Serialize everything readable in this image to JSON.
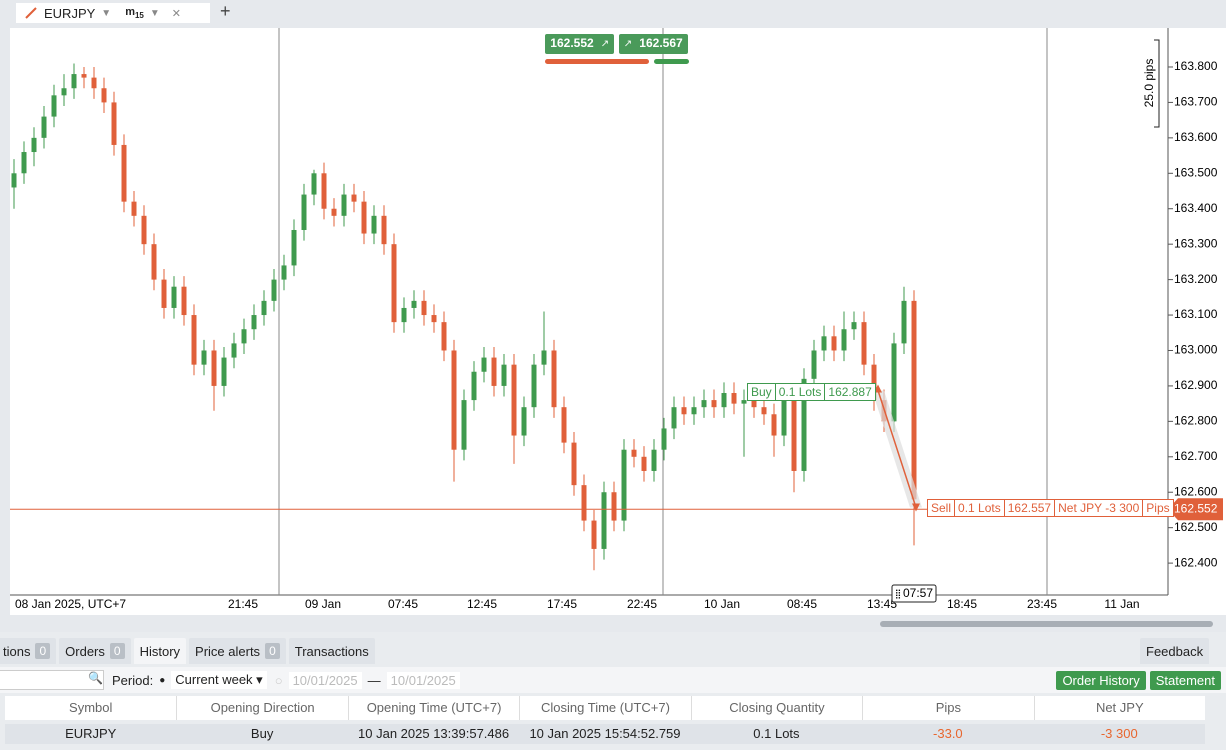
{
  "toolbar": {
    "symbol": "EURJPY",
    "timeframe": "m",
    "timeframe_sub": "15"
  },
  "quote": {
    "bid": 162.552,
    "ask": 162.567
  },
  "ruler": "25.0 pips",
  "crosshair_time": "07:57",
  "chart_data": {
    "type": "candlestick",
    "ylim": [
      162.31,
      163.91
    ],
    "yticks": [
      {
        "value": 163.8,
        "label": "163.800"
      },
      {
        "value": 163.7,
        "label": "163.700"
      },
      {
        "value": 163.6,
        "label": "163.600"
      },
      {
        "value": 163.5,
        "label": "163.500"
      },
      {
        "value": 163.4,
        "label": "163.400"
      },
      {
        "value": 163.3,
        "label": "163.300"
      },
      {
        "value": 163.2,
        "label": "163.200"
      },
      {
        "value": 163.1,
        "label": "163.100"
      },
      {
        "value": 163.0,
        "label": "163.000"
      },
      {
        "value": 162.9,
        "label": "162.900"
      },
      {
        "value": 162.8,
        "label": "162.800"
      },
      {
        "value": 162.7,
        "label": "162.700"
      },
      {
        "value": 162.6,
        "label": "162.600"
      },
      {
        "value": 162.5,
        "label": "162.500"
      },
      {
        "value": 162.4,
        "label": "162.400"
      }
    ],
    "xtick_labels": [
      "08 Jan 2025, UTC+7",
      "21:45",
      "09 Jan",
      "07:45",
      "12:45",
      "17:45",
      "22:45",
      "10 Jan",
      "08:45",
      "13:45",
      "18:45",
      "23:45",
      "11 Jan"
    ],
    "up_color": "#3f9a4e",
    "down_color": "#e0603a",
    "current_price": 162.552,
    "trades": {
      "buy": {
        "side": "Buy",
        "lots": "0.1 Lots",
        "price": 162.887
      },
      "sell": {
        "side": "Sell",
        "lots": "0.1 Lots",
        "price": 162.557,
        "net": "Net JPY -3 300",
        "unit": "Pips"
      }
    },
    "candles": [
      [
        163.46,
        163.54,
        163.4,
        163.5
      ],
      [
        163.5,
        163.59,
        163.47,
        163.56
      ],
      [
        163.56,
        163.63,
        163.52,
        163.6
      ],
      [
        163.6,
        163.69,
        163.57,
        163.66
      ],
      [
        163.66,
        163.75,
        163.63,
        163.72
      ],
      [
        163.72,
        163.78,
        163.69,
        163.74
      ],
      [
        163.74,
        163.81,
        163.71,
        163.78
      ],
      [
        163.78,
        163.8,
        163.74,
        163.77
      ],
      [
        163.77,
        163.8,
        163.71,
        163.74
      ],
      [
        163.74,
        163.77,
        163.67,
        163.7
      ],
      [
        163.7,
        163.73,
        163.55,
        163.58
      ],
      [
        163.58,
        163.61,
        163.39,
        163.42
      ],
      [
        163.42,
        163.45,
        163.35,
        163.38
      ],
      [
        163.38,
        163.41,
        163.27,
        163.3
      ],
      [
        163.3,
        163.33,
        163.17,
        163.2
      ],
      [
        163.2,
        163.23,
        163.09,
        163.12
      ],
      [
        163.12,
        163.21,
        163.09,
        163.18
      ],
      [
        163.18,
        163.21,
        163.07,
        163.1
      ],
      [
        163.1,
        163.13,
        162.93,
        162.96
      ],
      [
        162.96,
        163.03,
        162.93,
        163.0
      ],
      [
        163.0,
        163.03,
        162.83,
        162.9
      ],
      [
        162.9,
        163.01,
        162.87,
        162.98
      ],
      [
        162.98,
        163.05,
        162.95,
        163.02
      ],
      [
        163.02,
        163.09,
        162.99,
        163.06
      ],
      [
        163.06,
        163.13,
        163.03,
        163.1
      ],
      [
        163.1,
        163.17,
        163.07,
        163.14
      ],
      [
        163.14,
        163.23,
        163.11,
        163.2
      ],
      [
        163.2,
        163.27,
        163.17,
        163.24
      ],
      [
        163.24,
        163.37,
        163.21,
        163.34
      ],
      [
        163.34,
        163.47,
        163.31,
        163.44
      ],
      [
        163.44,
        163.51,
        163.41,
        163.5
      ],
      [
        163.5,
        163.53,
        163.37,
        163.4
      ],
      [
        163.4,
        163.43,
        163.35,
        163.38
      ],
      [
        163.38,
        163.47,
        163.35,
        163.44
      ],
      [
        163.44,
        163.47,
        163.39,
        163.42
      ],
      [
        163.42,
        163.45,
        163.3,
        163.33
      ],
      [
        163.33,
        163.41,
        163.3,
        163.38
      ],
      [
        163.38,
        163.41,
        163.27,
        163.3
      ],
      [
        163.3,
        163.33,
        163.05,
        163.08
      ],
      [
        163.08,
        163.15,
        163.05,
        163.12
      ],
      [
        163.12,
        163.17,
        163.09,
        163.14
      ],
      [
        163.14,
        163.17,
        163.07,
        163.1
      ],
      [
        163.1,
        163.13,
        163.05,
        163.08
      ],
      [
        163.08,
        163.11,
        162.97,
        163.0
      ],
      [
        163.0,
        163.03,
        162.63,
        162.72
      ],
      [
        162.72,
        162.89,
        162.69,
        162.86
      ],
      [
        162.86,
        162.97,
        162.83,
        162.94
      ],
      [
        162.94,
        163.01,
        162.91,
        162.98
      ],
      [
        162.98,
        163.01,
        162.87,
        162.9
      ],
      [
        162.9,
        162.99,
        162.87,
        162.96
      ],
      [
        162.96,
        162.99,
        162.68,
        162.76
      ],
      [
        162.76,
        162.87,
        162.73,
        162.84
      ],
      [
        162.84,
        162.99,
        162.81,
        162.96
      ],
      [
        162.96,
        163.11,
        162.93,
        163.0
      ],
      [
        163.0,
        163.03,
        162.81,
        162.84
      ],
      [
        162.84,
        162.87,
        162.71,
        162.74
      ],
      [
        162.74,
        162.77,
        162.59,
        162.62
      ],
      [
        162.62,
        162.65,
        162.49,
        162.52
      ],
      [
        162.52,
        162.55,
        162.38,
        162.44
      ],
      [
        162.44,
        162.63,
        162.41,
        162.6
      ],
      [
        162.6,
        162.63,
        162.49,
        162.52
      ],
      [
        162.52,
        162.75,
        162.49,
        162.72
      ],
      [
        162.72,
        162.75,
        162.67,
        162.7
      ],
      [
        162.7,
        162.73,
        162.63,
        162.66
      ],
      [
        162.66,
        162.75,
        162.63,
        162.72
      ],
      [
        162.72,
        162.81,
        162.69,
        162.78
      ],
      [
        162.78,
        162.87,
        162.75,
        162.84
      ],
      [
        162.84,
        162.87,
        162.79,
        162.82
      ],
      [
        162.82,
        162.87,
        162.79,
        162.84
      ],
      [
        162.84,
        162.89,
        162.81,
        162.86
      ],
      [
        162.86,
        162.89,
        162.81,
        162.84
      ],
      [
        162.84,
        162.91,
        162.81,
        162.88
      ],
      [
        162.88,
        162.91,
        162.82,
        162.85
      ],
      [
        162.85,
        162.89,
        162.7,
        162.86
      ],
      [
        162.86,
        162.89,
        162.81,
        162.84
      ],
      [
        162.84,
        162.87,
        162.79,
        162.82
      ],
      [
        162.82,
        162.85,
        162.7,
        162.76
      ],
      [
        162.76,
        162.89,
        162.73,
        162.86
      ],
      [
        162.86,
        162.89,
        162.6,
        162.66
      ],
      [
        162.66,
        162.95,
        162.63,
        162.92
      ],
      [
        162.92,
        163.03,
        162.89,
        163.0
      ],
      [
        163.0,
        163.07,
        162.97,
        163.04
      ],
      [
        163.04,
        163.07,
        162.97,
        163.0
      ],
      [
        163.0,
        163.11,
        162.97,
        163.06
      ],
      [
        163.06,
        163.11,
        163.03,
        163.08
      ],
      [
        163.08,
        163.11,
        162.93,
        162.96
      ],
      [
        162.96,
        162.99,
        162.83,
        162.86
      ],
      [
        162.86,
        162.89,
        162.77,
        162.8
      ],
      [
        162.8,
        163.05,
        162.77,
        163.02
      ],
      [
        163.02,
        163.18,
        162.99,
        163.14
      ],
      [
        163.14,
        163.17,
        162.45,
        162.58
      ]
    ]
  },
  "panel": {
    "tabs": [
      {
        "label": "tions",
        "count": 0
      },
      {
        "label": "Orders",
        "count": 0
      },
      {
        "label": "History"
      },
      {
        "label": "Price alerts",
        "count": 0
      },
      {
        "label": "Transactions"
      }
    ],
    "feedback": "Feedback",
    "period_label": "Period:",
    "period": "Current week",
    "date_from": "10/01/2025",
    "date_sep": "—",
    "date_to": "10/01/2025",
    "buttons": [
      "Order History",
      "Statement"
    ],
    "table": {
      "columns": [
        "Symbol",
        "Opening Direction",
        "Opening Time (UTC+7)",
        "Closing Time (UTC+7)",
        "Closing Quantity",
        "Pips",
        "Net JPY"
      ],
      "rows": [
        [
          "EURJPY",
          "Buy",
          "10 Jan 2025 13:39:57.486",
          "10 Jan 2025 15:54:52.759",
          "0.1 Lots",
          "-33.0",
          "-3 300"
        ]
      ]
    }
  }
}
